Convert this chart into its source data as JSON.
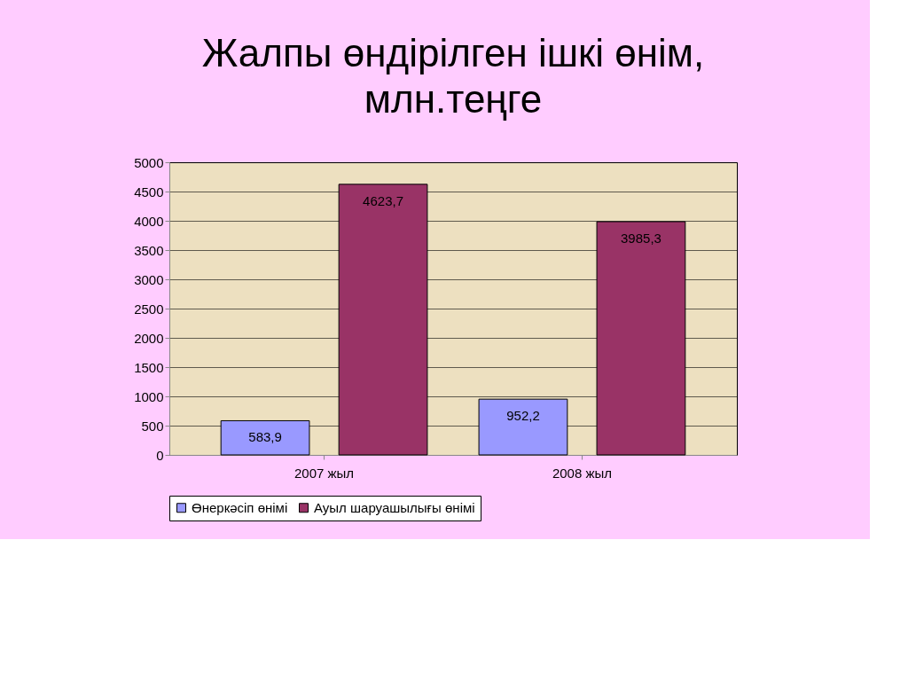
{
  "chart_data": {
    "type": "bar",
    "title": "Жалпы өндірілген ішкі өнім,",
    "subtitle": "млн.теңге",
    "categories": [
      "2007 жыл",
      "2008 жыл"
    ],
    "series": [
      {
        "name": "Өнеркәсіп өнімі",
        "color": "#9999ff",
        "values": [
          583.9,
          952.2
        ],
        "value_labels": [
          "583,9",
          "952,2"
        ]
      },
      {
        "name": "Ауыл шаруашылығы өнімі",
        "color": "#993366",
        "values": [
          4623.7,
          3985.3
        ],
        "value_labels": [
          "4623,7",
          "3985,3"
        ]
      }
    ],
    "ylim": [
      0,
      5000
    ],
    "yticks": [
      0,
      500,
      1000,
      1500,
      2000,
      2500,
      3000,
      3500,
      4000,
      4500,
      5000
    ],
    "grid": "y",
    "legend": "bottom"
  }
}
